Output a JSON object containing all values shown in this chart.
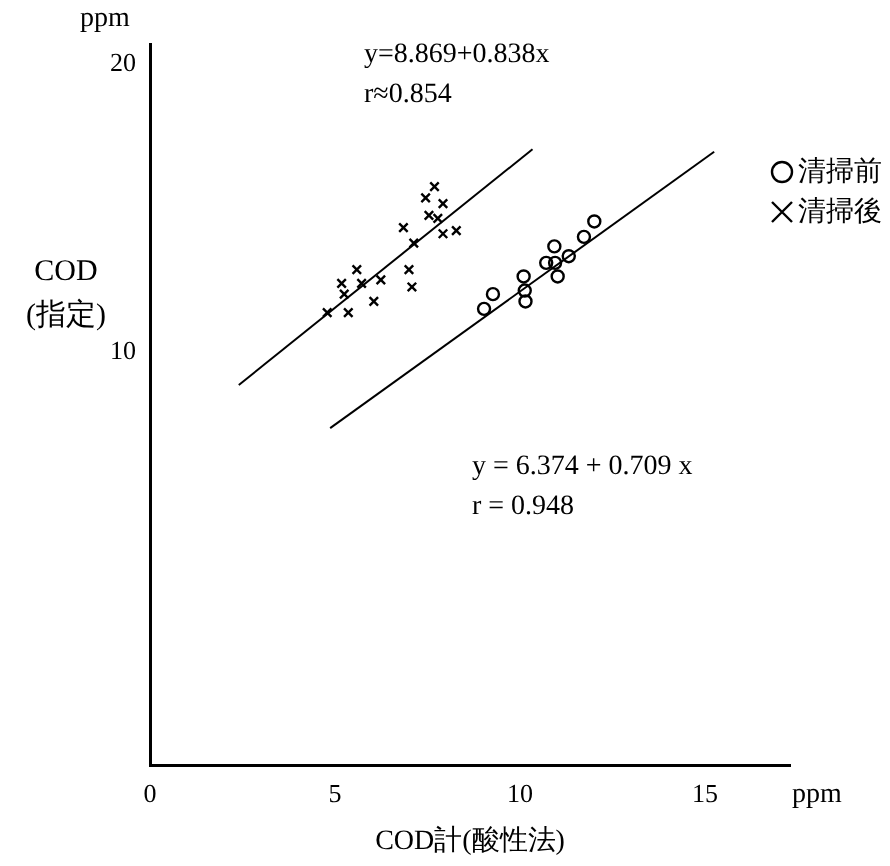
{
  "chart_data": {
    "type": "scatter",
    "xlabel": "COD計(酸性法)",
    "ylabel": "COD\n(指定)",
    "xlim": [
      0,
      17.3
    ],
    "xticks": [
      0,
      5,
      10,
      15
    ],
    "ylim": [
      3.7,
      21
    ],
    "yticks": [
      {
        "value": 10,
        "label": "10"
      },
      {
        "value": 20,
        "label": "20"
      }
    ],
    "log": "y",
    "grid": false,
    "legend": "top right",
    "annotations": [
      "y=8.869+0.838x",
      "r≈0.854",
      "y = 6.374 + 0.709 x",
      "r = 0.948",
      "ppm",
      "ppm"
    ],
    "series": [
      {
        "name": "清掃前",
        "color": "#000000",
        "marker": "circle",
        "x": [
          9.03,
          9.27,
          10.1,
          10.13,
          10.15,
          10.71,
          10.93,
          10.95,
          11.02,
          11.32,
          11.73,
          12.01
        ],
        "values": [
          11.1,
          11.5,
          12.0,
          11.6,
          11.3,
          12.4,
          12.9,
          12.4,
          12.0,
          12.6,
          13.2,
          13.7
        ]
      },
      {
        "name": "清掃後",
        "color": "#000000",
        "marker": "cross",
        "x": [
          4.79,
          5.36,
          5.25,
          5.18,
          5.59,
          5.72,
          6.05,
          6.24,
          7.0,
          7.08,
          6.85,
          7.13,
          7.45,
          7.69,
          7.92,
          7.54,
          7.78,
          8.28,
          7.92
        ],
        "values": [
          11.0,
          11.0,
          11.5,
          11.8,
          12.2,
          11.8,
          11.3,
          11.9,
          12.2,
          11.7,
          13.5,
          13.0,
          14.5,
          14.9,
          14.3,
          13.9,
          13.8,
          13.4,
          13.3
        ]
      },
      {
        "type": "line",
        "color": "#000000",
        "marker": "none",
        "x": [
          2.4,
          10.34
        ],
        "values": [
          9.24,
          16.3
        ]
      },
      {
        "type": "line",
        "color": "#000000",
        "marker": "none",
        "x": [
          4.87,
          15.25
        ],
        "values": [
          8.33,
          16.2
        ]
      }
    ]
  }
}
